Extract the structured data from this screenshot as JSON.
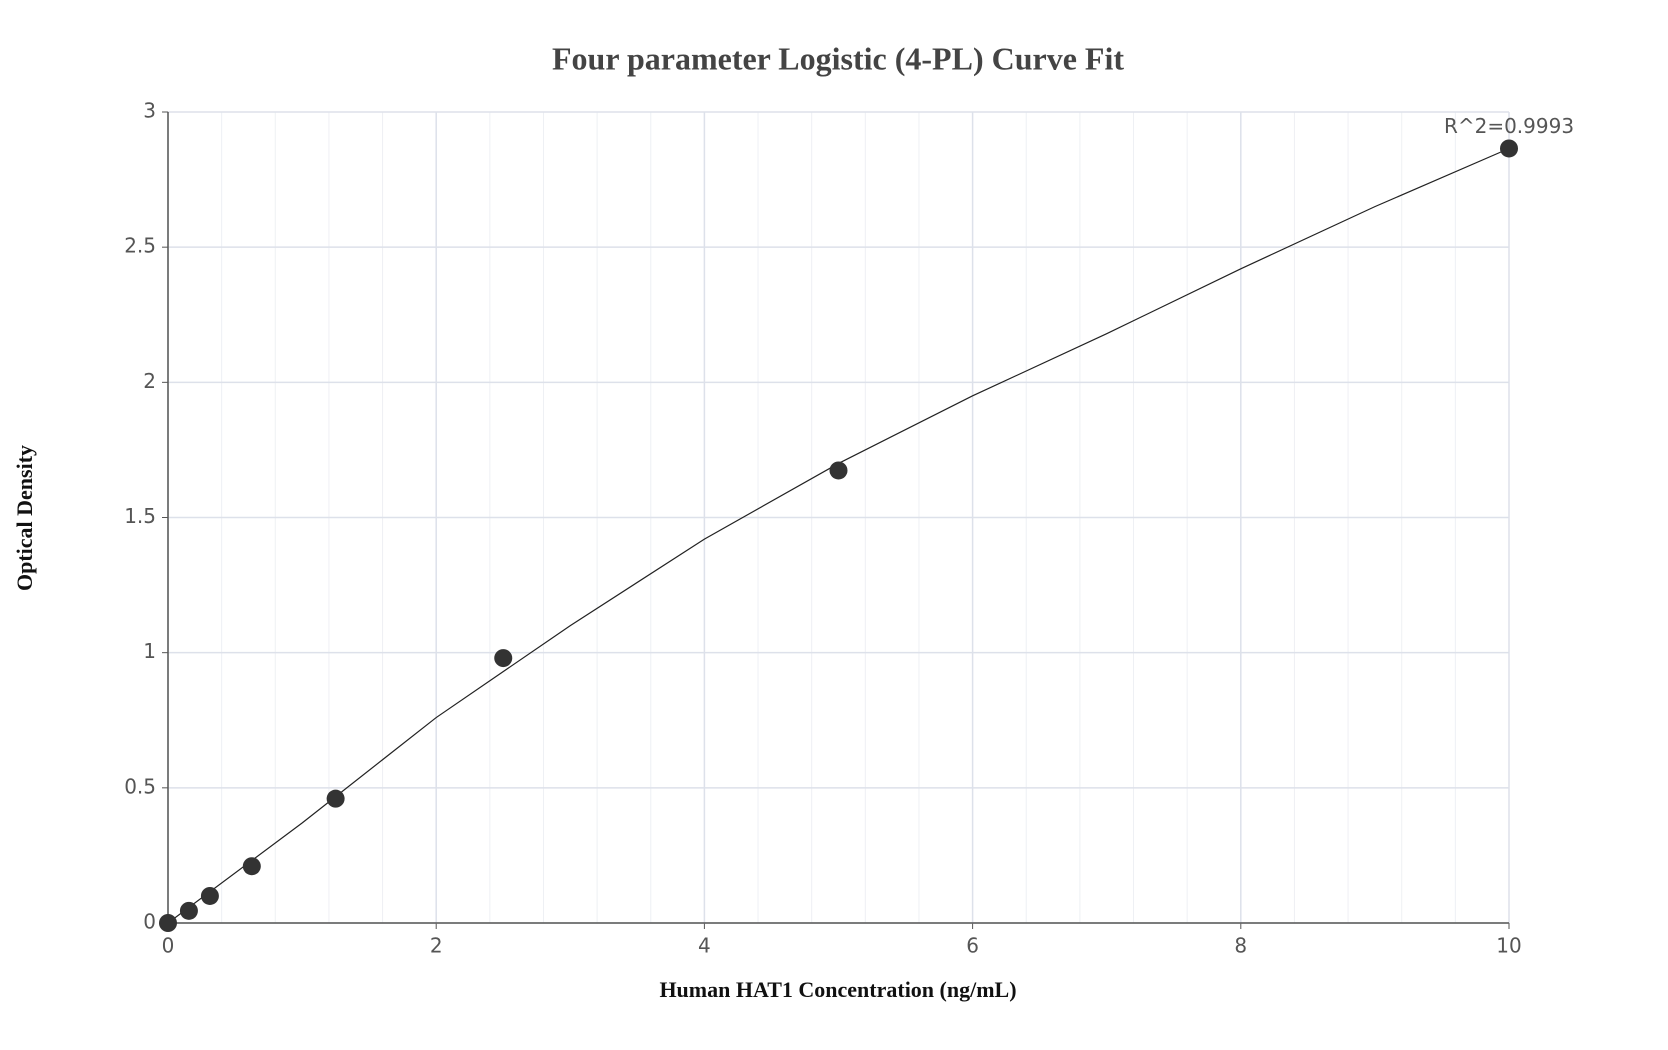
{
  "chart_data": {
    "type": "scatter",
    "title": "Four parameter Logistic (4-PL) Curve Fit",
    "x_label": "Human HAT1 Concentration (ng/mL)",
    "y_label": "Optical Density",
    "annotation": "R^2=0.9993",
    "points": {
      "color": "#333333",
      "x": [
        0,
        0.156,
        0.3125,
        0.625,
        1.25,
        2.5,
        5,
        10
      ],
      "y": [
        0.0,
        0.045,
        0.1,
        0.21,
        0.46,
        0.98,
        1.674,
        2.865
      ]
    },
    "fit_curve": {
      "color": "#222222",
      "x": [
        0,
        1,
        2,
        3,
        4,
        5,
        6,
        7,
        8,
        9,
        10
      ],
      "y": [
        0.0,
        0.37,
        0.76,
        1.1,
        1.42,
        1.7,
        1.95,
        2.18,
        2.42,
        2.65,
        2.865
      ]
    },
    "xlim": [
      0,
      10
    ],
    "ylim": [
      0,
      3
    ],
    "xticks": [
      0,
      2,
      4,
      6,
      8,
      10
    ],
    "yticks": [
      0,
      0.5,
      1,
      1.5,
      2,
      2.5,
      3
    ],
    "x_minor_grid": [
      0.4,
      0.8,
      1.2,
      1.6,
      2.4,
      2.8,
      3.2,
      3.6,
      4.4,
      4.8,
      5.2,
      5.6,
      6.4,
      6.8,
      7.2,
      7.6,
      8.4,
      8.8,
      9.2,
      9.6
    ],
    "grid": true
  }
}
